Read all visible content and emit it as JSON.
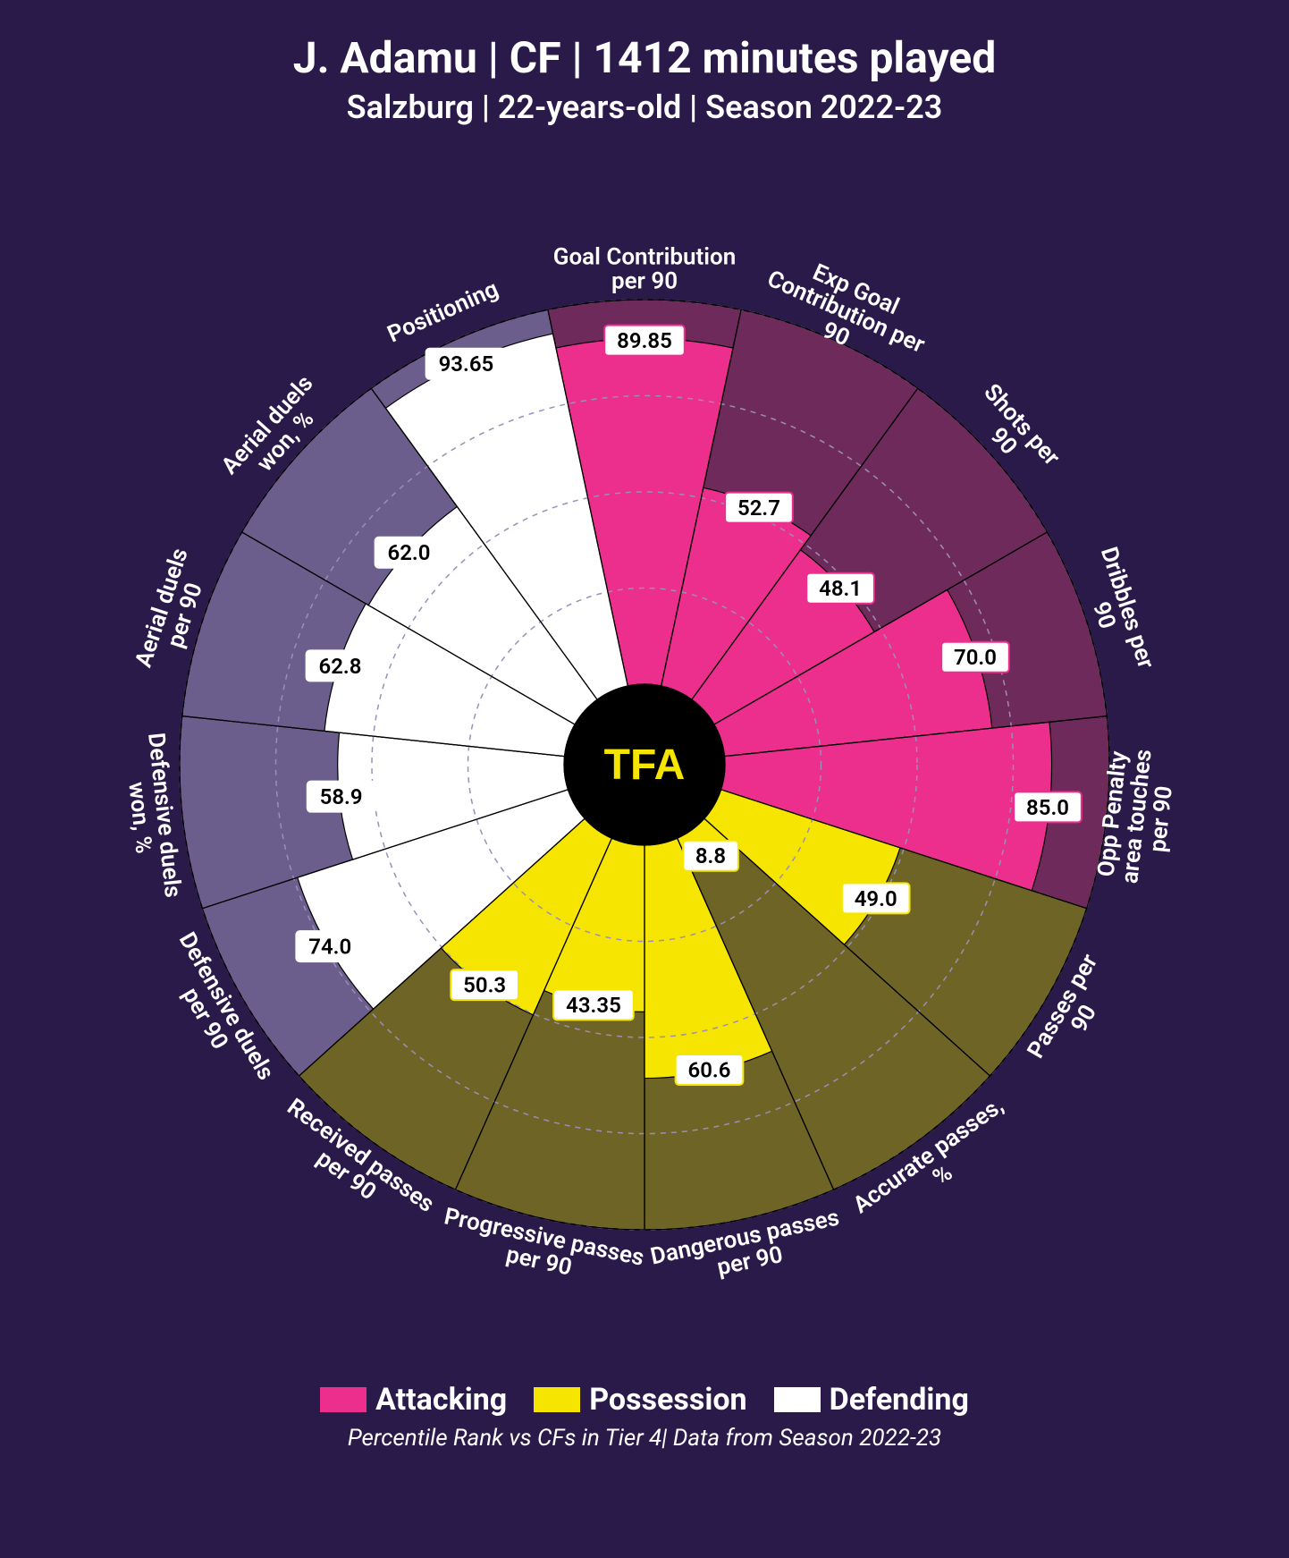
{
  "title": "J. Adamu | CF | 1412 minutes played",
  "subtitle": "Salzburg | 22-years-old | Season 2022-23",
  "footnote": "Percentile Rank vs CFs in Tier 4| Data from Season 2022-23",
  "center_logo": "TFA",
  "background_color": "#2a1a4a",
  "chart": {
    "type": "polar-bar",
    "outer_radius": 520,
    "inner_radius": 90,
    "gridline_radii_pct": [
      25,
      50,
      75,
      100
    ],
    "gridline_color": "#9a8fb8",
    "gridline_dash": "6 6",
    "slice_border_color": "#000000",
    "slice_border_width": 1.2,
    "category_label_fontsize": 26,
    "category_label_color": "#ffffff",
    "value_label_fontsize": 24,
    "value_label_bg": "#ffffff",
    "value_label_text": "#000000",
    "value_label_border": "#000000",
    "value_label_radius": 4,
    "categories": {
      "attacking": {
        "label": "Attacking",
        "fill": "#ec2e8d",
        "shade": "#6e2a5a"
      },
      "possession": {
        "label": "Possession",
        "fill": "#f5e500",
        "shade": "#6e6426"
      },
      "defending": {
        "label": "Defending",
        "fill": "#ffffff",
        "shade": "#6b5d8c"
      }
    },
    "metrics": [
      {
        "label": "Goal Contribution per 90",
        "value": 89.85,
        "category": "attacking"
      },
      {
        "label": "Exp Goal Contribution per 90",
        "value": 52.7,
        "category": "attacking"
      },
      {
        "label": "Shots per 90",
        "value": 48.1,
        "category": "attacking"
      },
      {
        "label": "Dribbles per 90",
        "value": 70.0,
        "category": "attacking"
      },
      {
        "label": "Opp Penalty area touches per 90",
        "value": 85.0,
        "category": "attacking"
      },
      {
        "label": "Passes per 90",
        "value": 49.0,
        "category": "possession"
      },
      {
        "label": "Accurate passes, %",
        "value": 8.8,
        "category": "possession"
      },
      {
        "label": "Dangerous passes per 90",
        "value": 60.6,
        "category": "possession"
      },
      {
        "label": "Progressive passes per 90",
        "value": 43.35,
        "category": "possession"
      },
      {
        "label": "Received passes per 90",
        "value": 50.3,
        "category": "possession"
      },
      {
        "label": "Defensive duels per 90",
        "value": 74.0,
        "category": "defending"
      },
      {
        "label": "Defensive duels won, %",
        "value": 58.9,
        "category": "defending"
      },
      {
        "label": "Aerial duels per 90",
        "value": 62.8,
        "category": "defending"
      },
      {
        "label": "Aerial duels won, %",
        "value": 62.0,
        "category": "defending"
      },
      {
        "label": "Positioning",
        "value": 93.65,
        "category": "defending"
      }
    ]
  },
  "legend": [
    {
      "key": "attacking",
      "label": "Attacking"
    },
    {
      "key": "possession",
      "label": "Possession"
    },
    {
      "key": "defending",
      "label": "Defending"
    }
  ]
}
